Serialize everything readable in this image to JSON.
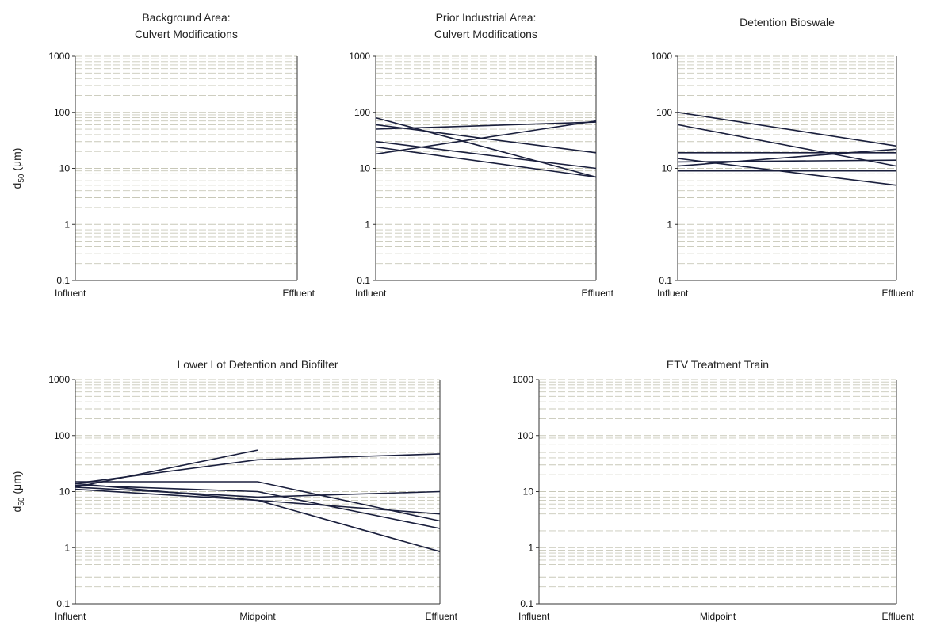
{
  "chart_data": [
    {
      "type": "line",
      "title": [
        "Background Area:",
        "Culvert Modifications"
      ],
      "categories": [
        "Influent",
        "Effluent"
      ],
      "ylabel": {
        "main": "d",
        "sub": "50",
        "unit": " (μm)"
      },
      "yscale": "log",
      "ylim": [
        0.1,
        1000
      ],
      "yticks": [
        "1000",
        "100",
        "10",
        "1",
        "0.1"
      ],
      "grid": "dashed minor/major horizontal",
      "series": []
    },
    {
      "type": "line",
      "title": [
        "Prior Industrial Area:",
        "Culvert Modifications"
      ],
      "categories": [
        "Influent",
        "Effluent"
      ],
      "ylabel": null,
      "yscale": "log",
      "ylim": [
        0.1,
        1000
      ],
      "yticks": [
        "1000",
        "100",
        "10",
        "1",
        "0.1"
      ],
      "grid": "dashed minor/major horizontal",
      "series": [
        {
          "values": [
            80,
            7
          ]
        },
        {
          "values": [
            60,
            19
          ]
        },
        {
          "values": [
            50,
            67
          ]
        },
        {
          "values": [
            30,
            10
          ]
        },
        {
          "values": [
            24,
            7
          ]
        },
        {
          "values": [
            18,
            70
          ]
        }
      ]
    },
    {
      "type": "line",
      "title": [
        "Detention Bioswale"
      ],
      "categories": [
        "Influent",
        "Effluent"
      ],
      "ylabel": null,
      "yscale": "log",
      "ylim": [
        0.1,
        1000
      ],
      "yticks": [
        "1000",
        "100",
        "10",
        "1",
        "0.1"
      ],
      "grid": "dashed minor/major horizontal",
      "series": [
        {
          "values": [
            100,
            25
          ]
        },
        {
          "values": [
            60,
            11
          ]
        },
        {
          "values": [
            19,
            19
          ]
        },
        {
          "values": [
            15,
            5
          ]
        },
        {
          "values": [
            13,
            14
          ]
        },
        {
          "values": [
            11,
            22
          ]
        },
        {
          "values": [
            9,
            9
          ]
        }
      ]
    },
    {
      "type": "line",
      "title": [
        "Lower Lot Detention and Biofilter"
      ],
      "categories": [
        "Influent",
        "Midpoint",
        "Effluent"
      ],
      "ylabel": {
        "main": "d",
        "sub": "50",
        "unit": " (μm)"
      },
      "yscale": "log",
      "ylim": [
        0.1,
        1000
      ],
      "yticks": [
        "1000",
        "100",
        "10",
        "1",
        "0.1"
      ],
      "grid": "dashed minor/major horizontal",
      "series": [
        {
          "values": [
            12,
            55,
            null
          ]
        },
        {
          "values": [
            14,
            37,
            47
          ]
        },
        {
          "values": [
            15,
            15,
            3
          ]
        },
        {
          "values": [
            13,
            10,
            2.2
          ]
        },
        {
          "values": [
            12,
            8,
            10
          ]
        },
        {
          "values": [
            14,
            7,
            4
          ]
        },
        {
          "values": [
            11,
            7,
            0.85
          ]
        }
      ]
    },
    {
      "type": "line",
      "title": [
        "ETV Treatment Train"
      ],
      "categories": [
        "Influent",
        "Midpoint",
        "Effluent"
      ],
      "ylabel": null,
      "yscale": "log",
      "ylim": [
        0.1,
        1000
      ],
      "yticks": [
        "1000",
        "100",
        "10",
        "1",
        "0.1"
      ],
      "grid": "dashed minor/major horizontal",
      "series": []
    }
  ],
  "colors": {
    "line": "#1a1f3d",
    "axis": "#333333",
    "grid": "#c8c8b8"
  }
}
